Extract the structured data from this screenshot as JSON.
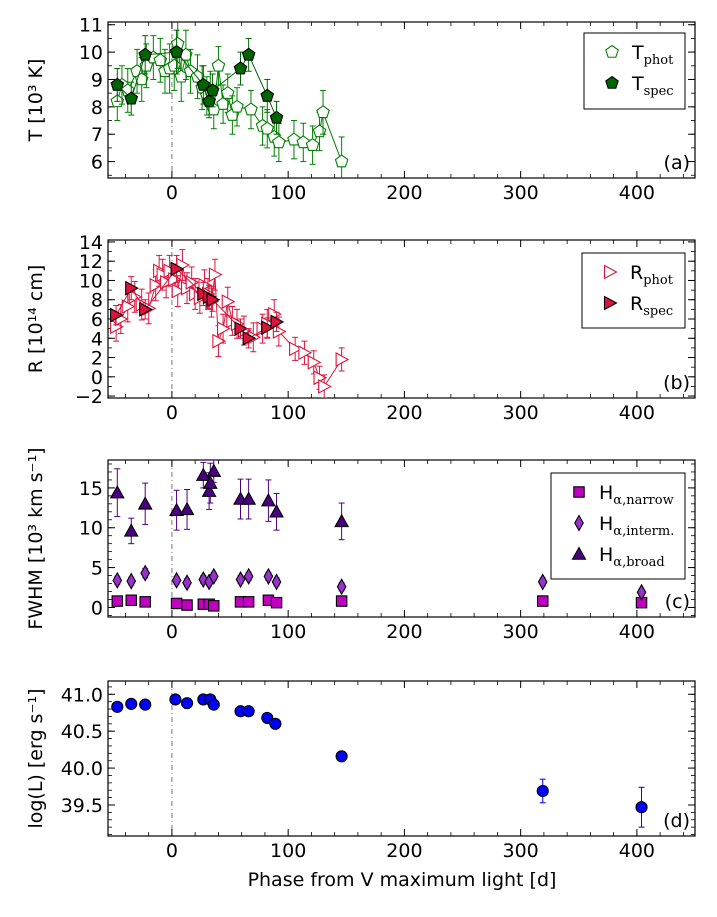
{
  "figure": {
    "xlabel": "Phase from V maximum light [d]"
  },
  "chart_data": [
    {
      "panel": "(a)",
      "type": "scatter",
      "ylabel": "T [10³ K]",
      "xlim": [
        -55,
        450
      ],
      "ylim": [
        5.4,
        11.1
      ],
      "xticks": [
        0,
        100,
        200,
        300,
        400
      ],
      "yticks": [
        6,
        7,
        8,
        9,
        10,
        11
      ],
      "legend_loc": "top-right",
      "series": [
        {
          "name": "T",
          "sub": "phot",
          "marker": "pentagon",
          "fill": "none",
          "stroke": "#008000",
          "connect": true,
          "points": [
            {
              "x": -47,
              "y": 8.2,
              "err": 0.7
            },
            {
              "x": -43,
              "y": 8.8,
              "err": 0.7
            },
            {
              "x": -38,
              "y": 8.6,
              "err": 0.8
            },
            {
              "x": -30,
              "y": 9.3,
              "err": 0.8
            },
            {
              "x": -26,
              "y": 9.0,
              "err": 0.8
            },
            {
              "x": -22,
              "y": 9.5,
              "err": 0.8
            },
            {
              "x": -16,
              "y": 9.8,
              "err": 0.8
            },
            {
              "x": -10,
              "y": 9.7,
              "err": 0.8
            },
            {
              "x": -6,
              "y": 9.3,
              "err": 0.8
            },
            {
              "x": -2,
              "y": 9.4,
              "err": 0.9
            },
            {
              "x": 2,
              "y": 9.5,
              "err": 0.9
            },
            {
              "x": 5,
              "y": 10.3,
              "err": 0.9
            },
            {
              "x": 8,
              "y": 9.1,
              "err": 0.9
            },
            {
              "x": 12,
              "y": 9.9,
              "err": 0.9
            },
            {
              "x": 16,
              "y": 9.3,
              "err": 0.8
            },
            {
              "x": 22,
              "y": 9.1,
              "err": 0.8
            },
            {
              "x": 26,
              "y": 8.7,
              "err": 0.8
            },
            {
              "x": 30,
              "y": 8.4,
              "err": 0.7
            },
            {
              "x": 33,
              "y": 8.6,
              "err": 0.7
            },
            {
              "x": 36,
              "y": 7.9,
              "err": 0.7
            },
            {
              "x": 40,
              "y": 9.5,
              "err": 0.7
            },
            {
              "x": 44,
              "y": 8.1,
              "err": 0.7
            },
            {
              "x": 48,
              "y": 8.5,
              "err": 0.7
            },
            {
              "x": 52,
              "y": 7.7,
              "err": 0.7
            },
            {
              "x": 56,
              "y": 8.0,
              "err": 0.7
            },
            {
              "x": 68,
              "y": 7.9,
              "err": 0.7
            },
            {
              "x": 78,
              "y": 7.3,
              "err": 0.7
            },
            {
              "x": 82,
              "y": 7.2,
              "err": 0.7
            },
            {
              "x": 88,
              "y": 6.9,
              "err": 0.7
            },
            {
              "x": 92,
              "y": 6.7,
              "err": 0.7
            },
            {
              "x": 105,
              "y": 6.8,
              "err": 0.7
            },
            {
              "x": 113,
              "y": 6.7,
              "err": 0.7
            },
            {
              "x": 121,
              "y": 6.6,
              "err": 0.7
            },
            {
              "x": 127,
              "y": 7.1,
              "err": 0.7
            },
            {
              "x": 130,
              "y": 7.8,
              "err": 0.8
            },
            {
              "x": 146,
              "y": 6.0,
              "err": 0.9
            }
          ]
        },
        {
          "name": "T",
          "sub": "spec",
          "marker": "pentagon",
          "fill": "#006400",
          "stroke": "#000000",
          "connect": true,
          "points": [
            {
              "x": -47,
              "y": 8.8,
              "err": 0.6
            },
            {
              "x": -35,
              "y": 8.3,
              "err": 0.6
            },
            {
              "x": -23,
              "y": 9.9,
              "err": 0.7
            },
            {
              "x": 4,
              "y": 10.0,
              "err": 0.8
            },
            {
              "x": 27,
              "y": 8.8,
              "err": 0.7
            },
            {
              "x": 32,
              "y": 8.2,
              "err": 0.6
            },
            {
              "x": 35,
              "y": 8.6,
              "err": 0.6
            },
            {
              "x": 59,
              "y": 9.4,
              "err": 0.6
            },
            {
              "x": 66,
              "y": 9.9,
              "err": 0.6
            },
            {
              "x": 82,
              "y": 8.4,
              "err": 0.6
            },
            {
              "x": 90,
              "y": 7.6,
              "err": 0.6
            }
          ]
        }
      ]
    },
    {
      "panel": "(b)",
      "type": "scatter",
      "ylabel": "R [10¹⁴ cm]",
      "xlim": [
        -55,
        450
      ],
      "ylim": [
        -2.2,
        14.2
      ],
      "xticks": [
        0,
        100,
        200,
        300,
        400
      ],
      "yticks": [
        -2,
        0,
        2,
        4,
        6,
        8,
        10,
        12,
        14
      ],
      "legend_loc": "top-right",
      "series": [
        {
          "name": "R",
          "sub": "phot",
          "marker": "triangle-right",
          "fill": "none",
          "stroke": "#dc143c",
          "connect": true,
          "points": [
            {
              "x": -48,
              "y": 5.2,
              "err": 1.5
            },
            {
              "x": -44,
              "y": 6.0,
              "err": 1.5
            },
            {
              "x": -38,
              "y": 7.3,
              "err": 1.6
            },
            {
              "x": -32,
              "y": 8.3,
              "err": 1.6
            },
            {
              "x": -26,
              "y": 7.5,
              "err": 1.6
            },
            {
              "x": -20,
              "y": 7.1,
              "err": 1.6
            },
            {
              "x": -14,
              "y": 9.5,
              "err": 1.6
            },
            {
              "x": -11,
              "y": 11.0,
              "err": 1.6
            },
            {
              "x": -8,
              "y": 10.6,
              "err": 1.6
            },
            {
              "x": -5,
              "y": 9.8,
              "err": 1.6
            },
            {
              "x": -2,
              "y": 11.0,
              "err": 1.6
            },
            {
              "x": 2,
              "y": 10.1,
              "err": 1.6
            },
            {
              "x": 5,
              "y": 8.9,
              "err": 1.6
            },
            {
              "x": 9,
              "y": 11.6,
              "err": 1.6
            },
            {
              "x": 13,
              "y": 9.2,
              "err": 1.6
            },
            {
              "x": 17,
              "y": 9.8,
              "err": 1.6
            },
            {
              "x": 20,
              "y": 8.6,
              "err": 1.6
            },
            {
              "x": 24,
              "y": 8.2,
              "err": 1.6
            },
            {
              "x": 28,
              "y": 9.5,
              "err": 1.6
            },
            {
              "x": 31,
              "y": 8.6,
              "err": 1.6
            },
            {
              "x": 34,
              "y": 7.8,
              "err": 1.6
            },
            {
              "x": 37,
              "y": 10.6,
              "err": 1.6
            },
            {
              "x": 40,
              "y": 3.7,
              "err": 1.6
            },
            {
              "x": 44,
              "y": 5.0,
              "err": 1.5
            },
            {
              "x": 48,
              "y": 7.8,
              "err": 1.5
            },
            {
              "x": 52,
              "y": 5.8,
              "err": 1.5
            },
            {
              "x": 56,
              "y": 5.5,
              "err": 1.5
            },
            {
              "x": 62,
              "y": 4.8,
              "err": 1.5
            },
            {
              "x": 70,
              "y": 4.1,
              "err": 1.5
            },
            {
              "x": 78,
              "y": 5.0,
              "err": 1.5
            },
            {
              "x": 82,
              "y": 5.5,
              "err": 1.5
            },
            {
              "x": 88,
              "y": 6.5,
              "err": 1.5
            },
            {
              "x": 92,
              "y": 4.7,
              "err": 1.5
            },
            {
              "x": 106,
              "y": 2.9,
              "err": 1.2
            },
            {
              "x": 114,
              "y": 2.5,
              "err": 1.2
            },
            {
              "x": 122,
              "y": 1.5,
              "err": 1.2
            },
            {
              "x": 127,
              "y": -0.1,
              "err": 1.2
            },
            {
              "x": 131,
              "y": -1.0,
              "err": 1.2
            },
            {
              "x": 146,
              "y": 1.8,
              "err": 1.2
            }
          ]
        },
        {
          "name": "R",
          "sub": "spec",
          "marker": "triangle-right",
          "fill": "#dc143c",
          "stroke": "#000000",
          "connect": true,
          "points": [
            {
              "x": -48,
              "y": 6.4,
              "err": 1.0
            },
            {
              "x": -35,
              "y": 9.2,
              "err": 1.2
            },
            {
              "x": -23,
              "y": 7.0,
              "err": 1.0
            },
            {
              "x": 4,
              "y": 11.2,
              "err": 1.4
            },
            {
              "x": 27,
              "y": 8.6,
              "err": 1.2
            },
            {
              "x": 32,
              "y": 8.3,
              "err": 1.2
            },
            {
              "x": 35,
              "y": 8.0,
              "err": 1.2
            },
            {
              "x": 59,
              "y": 5.0,
              "err": 1.0
            },
            {
              "x": 66,
              "y": 4.0,
              "err": 1.0
            },
            {
              "x": 82,
              "y": 5.1,
              "err": 1.0
            },
            {
              "x": 90,
              "y": 5.7,
              "err": 1.0
            }
          ]
        }
      ]
    },
    {
      "panel": "(c)",
      "type": "scatter",
      "ylabel": "FWHM [10³ km s⁻¹]",
      "xlim": [
        -55,
        450
      ],
      "ylim": [
        -1.2,
        18.5
      ],
      "xticks": [
        0,
        100,
        200,
        300,
        400
      ],
      "yticks": [
        0,
        5,
        10,
        15
      ],
      "legend_loc": "top-right",
      "series": [
        {
          "name": "H",
          "sub": "α,narrow",
          "marker": "square",
          "fill": "#c000c0",
          "stroke": "#000000",
          "connect": false,
          "points": [
            {
              "x": -47,
              "y": 0.8,
              "err": 0
            },
            {
              "x": -35,
              "y": 0.9,
              "err": 0
            },
            {
              "x": -23,
              "y": 0.7,
              "err": 0
            },
            {
              "x": 4,
              "y": 0.5,
              "err": 0
            },
            {
              "x": 13,
              "y": 0.3,
              "err": 0
            },
            {
              "x": 27,
              "y": 0.4,
              "err": 0
            },
            {
              "x": 32,
              "y": 0.4,
              "err": 0
            },
            {
              "x": 36,
              "y": 0.2,
              "err": 0
            },
            {
              "x": 59,
              "y": 0.7,
              "err": 0
            },
            {
              "x": 66,
              "y": 0.7,
              "err": 0
            },
            {
              "x": 83,
              "y": 0.9,
              "err": 0
            },
            {
              "x": 90,
              "y": 0.6,
              "err": 0
            },
            {
              "x": 146,
              "y": 0.8,
              "err": 0
            },
            {
              "x": 319,
              "y": 0.8,
              "err": 0
            },
            {
              "x": 404,
              "y": 0.6,
              "err": 0
            }
          ]
        },
        {
          "name": "H",
          "sub": "α,interm.",
          "marker": "diamond",
          "fill": "#9932cc",
          "stroke": "#000000",
          "connect": false,
          "points": [
            {
              "x": -47,
              "y": 3.4,
              "err": 0.5
            },
            {
              "x": -35,
              "y": 3.3,
              "err": 0.5
            },
            {
              "x": -23,
              "y": 4.3,
              "err": 0.6
            },
            {
              "x": 4,
              "y": 3.4,
              "err": 0.5
            },
            {
              "x": 13,
              "y": 3.1,
              "err": 0.5
            },
            {
              "x": 27,
              "y": 3.5,
              "err": 0.5
            },
            {
              "x": 32,
              "y": 3.2,
              "err": 0.5
            },
            {
              "x": 36,
              "y": 3.9,
              "err": 0.5
            },
            {
              "x": 59,
              "y": 3.5,
              "err": 0.5
            },
            {
              "x": 66,
              "y": 3.9,
              "err": 0.5
            },
            {
              "x": 83,
              "y": 3.9,
              "err": 0.5
            },
            {
              "x": 90,
              "y": 3.2,
              "err": 0.5
            },
            {
              "x": 146,
              "y": 2.6,
              "err": 0.5
            },
            {
              "x": 319,
              "y": 3.2,
              "err": 0.5
            },
            {
              "x": 404,
              "y": 1.9,
              "err": 0.4
            }
          ]
        },
        {
          "name": "H",
          "sub": "α,broad",
          "marker": "triangle-up",
          "fill": "#4b0082",
          "stroke": "#000000",
          "connect": false,
          "points": [
            {
              "x": -47,
              "y": 14.4,
              "err": 3.0
            },
            {
              "x": -35,
              "y": 9.6,
              "err": 1.6
            },
            {
              "x": -23,
              "y": 13.0,
              "err": 2.6
            },
            {
              "x": 4,
              "y": 12.2,
              "err": 2.5
            },
            {
              "x": 13,
              "y": 12.3,
              "err": 2.5
            },
            {
              "x": 27,
              "y": 16.6,
              "err": 1.6
            },
            {
              "x": 32,
              "y": 14.6,
              "err": 2.3
            },
            {
              "x": 33,
              "y": 15.6,
              "err": 2.5
            },
            {
              "x": 36,
              "y": 17.1,
              "err": 1.4
            },
            {
              "x": 59,
              "y": 13.6,
              "err": 2.5
            },
            {
              "x": 66,
              "y": 13.6,
              "err": 2.5
            },
            {
              "x": 83,
              "y": 13.4,
              "err": 2.6
            },
            {
              "x": 90,
              "y": 12.0,
              "err": 2.3
            },
            {
              "x": 146,
              "y": 10.8,
              "err": 2.3
            }
          ]
        }
      ]
    },
    {
      "panel": "(d)",
      "type": "scatter",
      "ylabel": "log(L) [erg s⁻¹]",
      "xlim": [
        -55,
        450
      ],
      "ylim": [
        39.08,
        41.18
      ],
      "xticks": [
        0,
        100,
        200,
        300,
        400
      ],
      "yticks": [
        39.5,
        40.0,
        40.5,
        41.0
      ],
      "legend_loc": "none",
      "series": [
        {
          "name": "L",
          "sub": "",
          "marker": "circle",
          "fill": "#0000ff",
          "stroke": "#000000",
          "connect": false,
          "points": [
            {
              "x": -47,
              "y": 40.83,
              "err": 0.02
            },
            {
              "x": -35,
              "y": 40.87,
              "err": 0.02
            },
            {
              "x": -23,
              "y": 40.86,
              "err": 0.02
            },
            {
              "x": 3,
              "y": 40.93,
              "err": 0.02
            },
            {
              "x": 13,
              "y": 40.88,
              "err": 0.02
            },
            {
              "x": 27,
              "y": 40.93,
              "err": 0.02
            },
            {
              "x": 33,
              "y": 40.93,
              "err": 0.02
            },
            {
              "x": 36,
              "y": 40.86,
              "err": 0.02
            },
            {
              "x": 59,
              "y": 40.77,
              "err": 0.02
            },
            {
              "x": 66,
              "y": 40.77,
              "err": 0.02
            },
            {
              "x": 82,
              "y": 40.68,
              "err": 0.02
            },
            {
              "x": 89,
              "y": 40.6,
              "err": 0.02
            },
            {
              "x": 146,
              "y": 40.16,
              "err": 0.05
            },
            {
              "x": 319,
              "y": 39.69,
              "err": 0.16
            },
            {
              "x": 404,
              "y": 39.47,
              "err": 0.27
            }
          ]
        }
      ]
    }
  ]
}
